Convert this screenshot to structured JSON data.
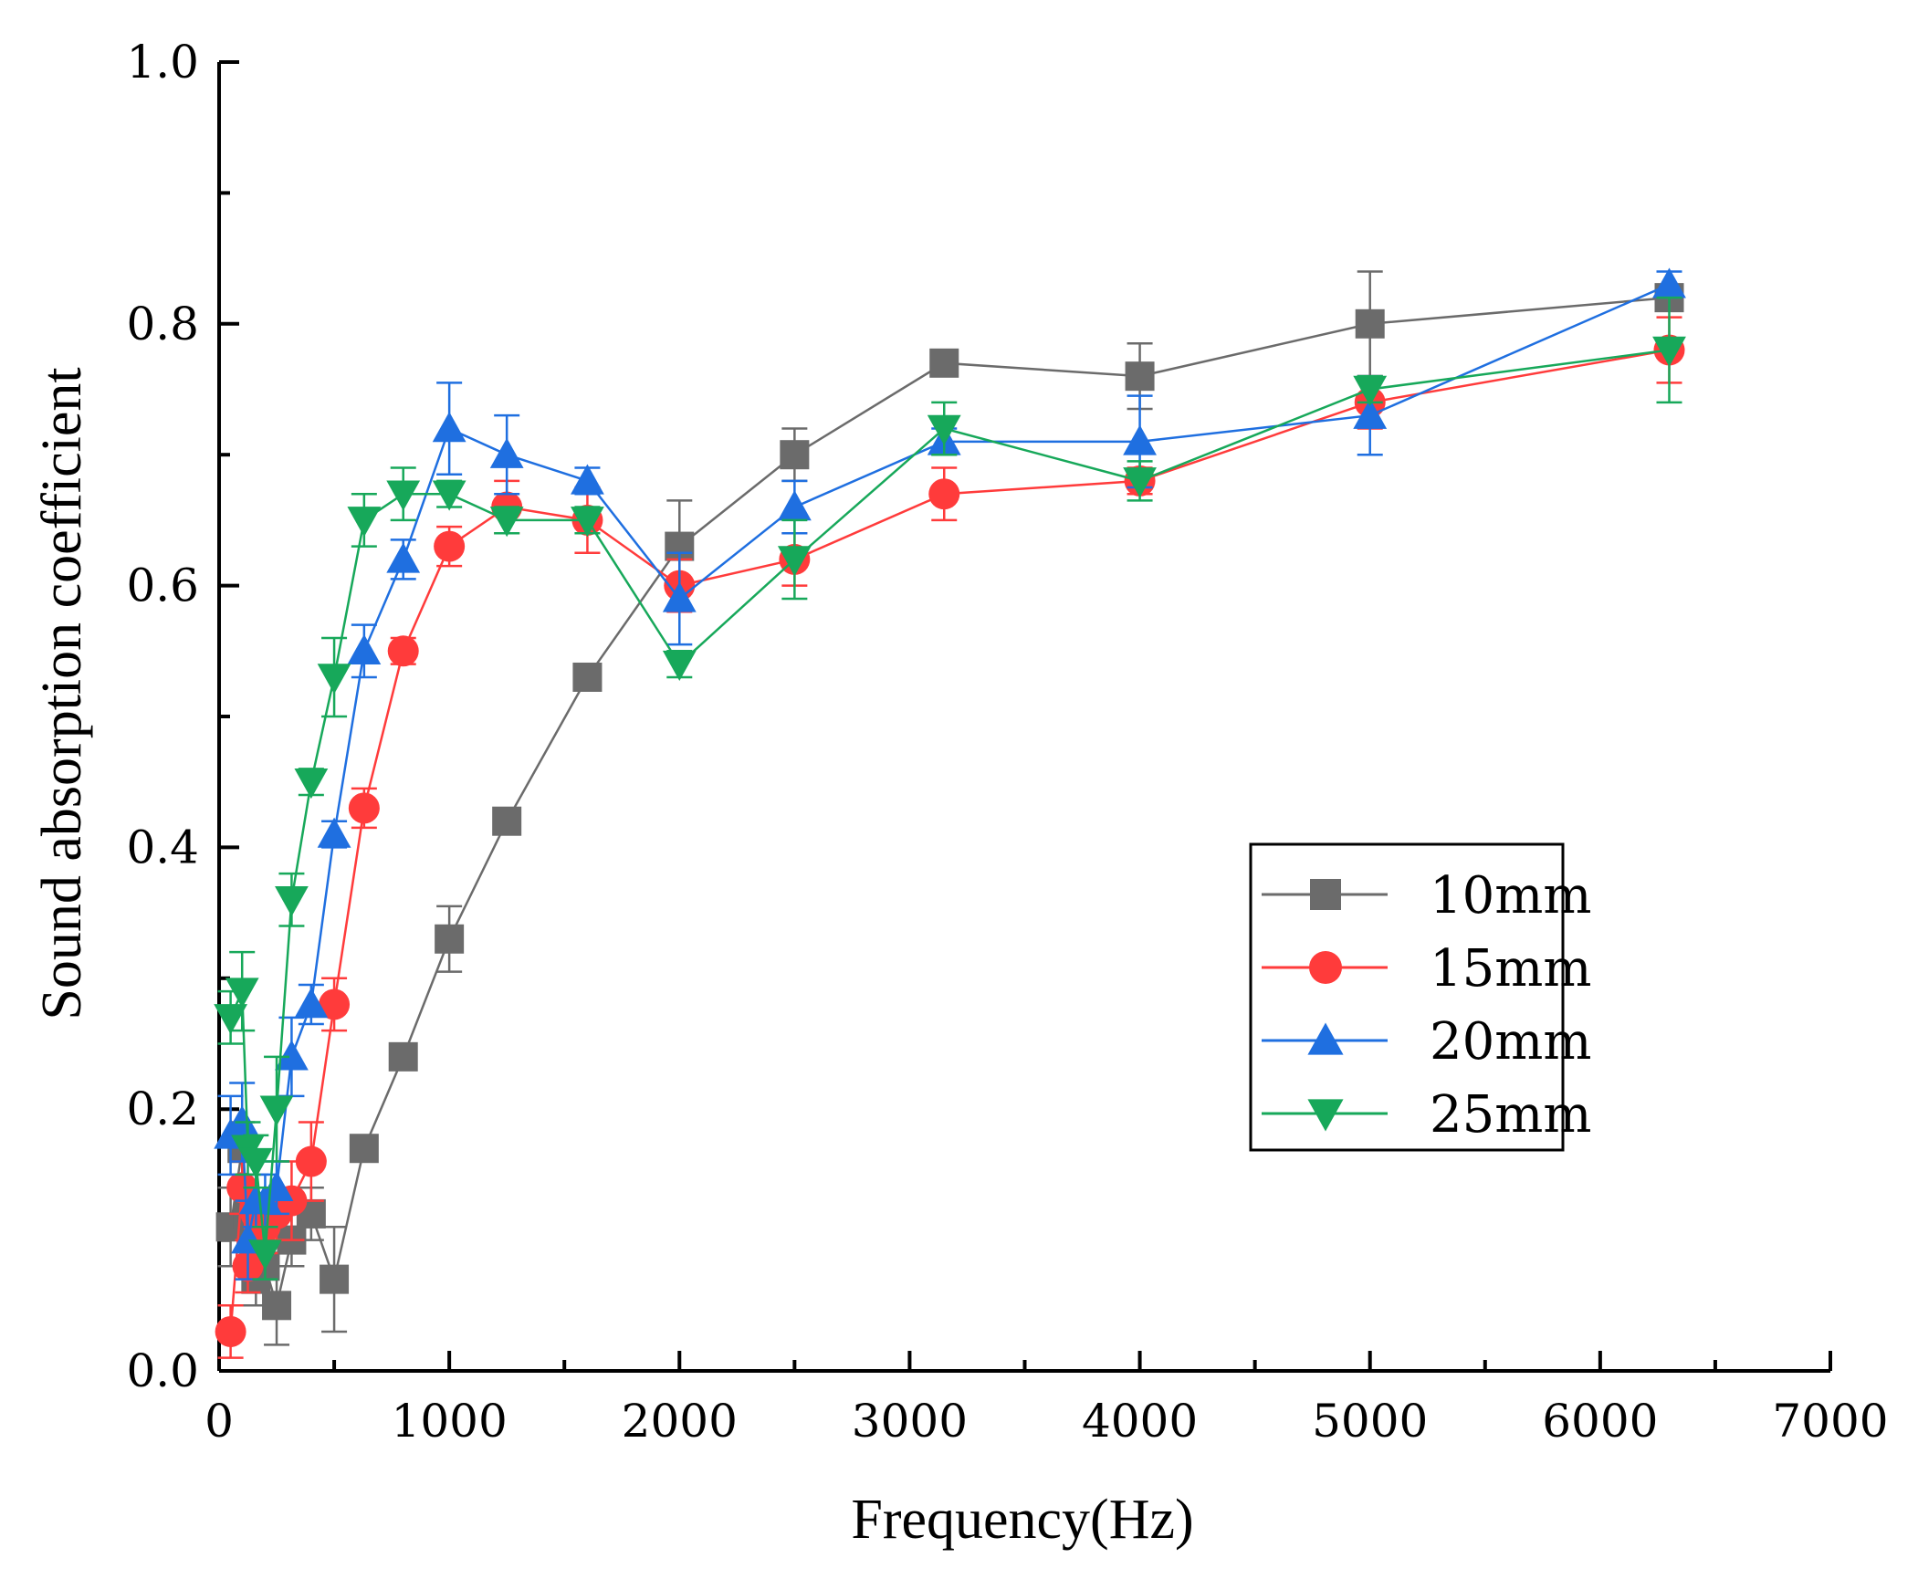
{
  "chart_data": {
    "type": "line",
    "title": "",
    "xlabel": "Frequency(Hz)",
    "ylabel": "Sound absorption coefficient",
    "xlim": [
      0,
      7000
    ],
    "ylim": [
      0.0,
      1.0
    ],
    "x_ticks": [
      0,
      1000,
      2000,
      3000,
      4000,
      5000,
      6000,
      7000
    ],
    "x_tick_labels": [
      "0",
      "1000",
      "2000",
      "3000",
      "4000",
      "5000",
      "6000",
      "7000"
    ],
    "y_ticks": [
      0.0,
      0.2,
      0.4,
      0.6,
      0.8,
      1.0
    ],
    "y_tick_labels": [
      "0.0",
      "0.2",
      "0.4",
      "0.6",
      "0.8",
      "1.0"
    ],
    "grid": false,
    "legend_position": "center-right",
    "x": [
      50,
      100,
      125,
      160,
      200,
      250,
      315,
      400,
      500,
      630,
      800,
      1000,
      1250,
      1600,
      2000,
      2500,
      3150,
      4000,
      5000,
      6300
    ],
    "series": [
      {
        "name": "10mm",
        "color": "#6b6b6b",
        "marker": "square",
        "values": [
          0.11,
          0.17,
          0.12,
          0.07,
          0.08,
          0.05,
          0.1,
          0.12,
          0.07,
          0.17,
          0.24,
          0.33,
          0.42,
          0.53,
          0.63,
          0.7,
          0.77,
          0.76,
          0.8,
          0.82
        ],
        "errors": [
          0.03,
          0.02,
          0.02,
          0.02,
          0.02,
          0.03,
          0.02,
          0.02,
          0.04,
          0.01,
          0.01,
          0.025,
          0.01,
          0.01,
          0.035,
          0.02,
          0.01,
          0.025,
          0.04,
          0.01
        ]
      },
      {
        "name": "15mm",
        "color": "#ff3b3b",
        "marker": "circle",
        "values": [
          0.03,
          0.14,
          0.08,
          0.12,
          0.11,
          0.12,
          0.13,
          0.16,
          0.28,
          0.43,
          0.55,
          0.63,
          0.66,
          0.65,
          0.6,
          0.62,
          0.67,
          0.68,
          0.74,
          0.78
        ],
        "errors": [
          0.02,
          0.02,
          0.02,
          0.02,
          0.02,
          0.02,
          0.03,
          0.03,
          0.02,
          0.015,
          0.01,
          0.015,
          0.02,
          0.025,
          0.02,
          0.02,
          0.02,
          0.01,
          0.02,
          0.025
        ]
      },
      {
        "name": "20mm",
        "color": "#1f6fe0",
        "marker": "triangle-up",
        "values": [
          0.18,
          0.19,
          0.1,
          0.13,
          0.13,
          0.14,
          0.24,
          0.28,
          0.41,
          0.55,
          0.62,
          0.72,
          0.7,
          0.68,
          0.59,
          0.66,
          0.71,
          0.71,
          0.73,
          0.83
        ],
        "errors": [
          0.03,
          0.03,
          0.03,
          0.02,
          0.02,
          0.02,
          0.03,
          0.015,
          0.01,
          0.02,
          0.015,
          0.035,
          0.03,
          0.01,
          0.035,
          0.02,
          0.01,
          0.035,
          0.03,
          0.01
        ]
      },
      {
        "name": "25mm",
        "color": "#17a85a",
        "marker": "triangle-down",
        "values": [
          0.27,
          0.29,
          0.17,
          0.16,
          0.09,
          0.2,
          0.36,
          0.45,
          0.53,
          0.65,
          0.67,
          0.67,
          0.65,
          0.65,
          0.54,
          0.62,
          0.72,
          0.68,
          0.75,
          0.78
        ],
        "errors": [
          0.02,
          0.03,
          0.02,
          0.02,
          0.02,
          0.04,
          0.02,
          0.01,
          0.03,
          0.02,
          0.02,
          0.01,
          0.01,
          0.01,
          0.01,
          0.03,
          0.02,
          0.015,
          0.01,
          0.04
        ]
      }
    ]
  }
}
